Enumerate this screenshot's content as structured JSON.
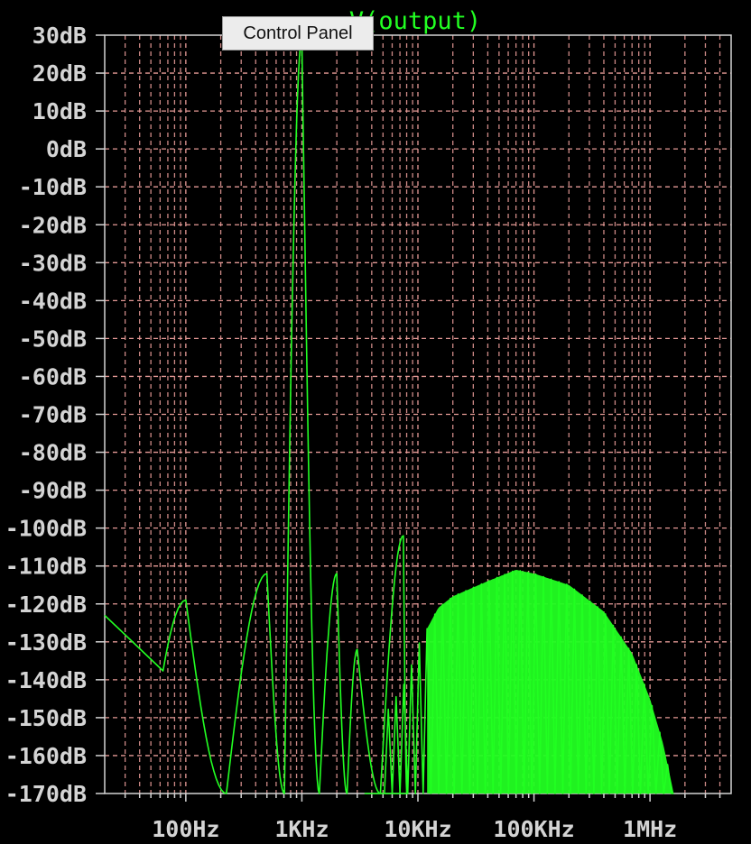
{
  "tooltip": {
    "label": "Control Panel"
  },
  "colors": {
    "background": "#000000",
    "trace": "#22ff22",
    "grid": "#e59a96",
    "axis": "#d4d4d4",
    "tick_text": "#d4d4d4"
  },
  "chart_data": {
    "type": "line",
    "title": "V(output)",
    "xscale": "log",
    "xlim": [
      20,
      5000000
    ],
    "ylim": [
      -170,
      30
    ],
    "grid": true,
    "x_ticks": [
      {
        "value": 100,
        "label": "100Hz"
      },
      {
        "value": 1000,
        "label": "1KHz"
      },
      {
        "value": 10000,
        "label": "10KHz"
      },
      {
        "value": 100000,
        "label": "100KHz"
      },
      {
        "value": 1000000,
        "label": "1MHz"
      }
    ],
    "y_ticks": [
      {
        "value": 30,
        "label": "30dB"
      },
      {
        "value": 20,
        "label": "20dB"
      },
      {
        "value": 10,
        "label": "10dB"
      },
      {
        "value": 0,
        "label": "0dB"
      },
      {
        "value": -10,
        "label": "-10dB"
      },
      {
        "value": -20,
        "label": "-20dB"
      },
      {
        "value": -30,
        "label": "-30dB"
      },
      {
        "value": -40,
        "label": "-40dB"
      },
      {
        "value": -50,
        "label": "-50dB"
      },
      {
        "value": -60,
        "label": "-60dB"
      },
      {
        "value": -70,
        "label": "-70dB"
      },
      {
        "value": -80,
        "label": "-80dB"
      },
      {
        "value": -90,
        "label": "-90dB"
      },
      {
        "value": -100,
        "label": "-100dB"
      },
      {
        "value": -110,
        "label": "-110dB"
      },
      {
        "value": -120,
        "label": "-120dB"
      },
      {
        "value": -130,
        "label": "-130dB"
      },
      {
        "value": -140,
        "label": "-140dB"
      },
      {
        "value": -150,
        "label": "-150dB"
      },
      {
        "value": -160,
        "label": "-160dB"
      },
      {
        "value": -170,
        "label": "-170dB"
      }
    ],
    "series": [
      {
        "name": "V(output)",
        "lobes": [
          {
            "f": 100,
            "peak": -119
          },
          {
            "f": 500,
            "peak": -112
          },
          {
            "f": 1000,
            "peak": 29
          },
          {
            "f": 2000,
            "peak": -112
          },
          {
            "f": 3000,
            "peak": -132
          },
          {
            "f": 7500,
            "peak": -102
          }
        ],
        "envelope": [
          {
            "f": 5000,
            "db": -150
          },
          {
            "f": 8000,
            "db": -140
          },
          {
            "f": 10000,
            "db": -131
          },
          {
            "f": 15000,
            "db": -121
          },
          {
            "f": 20000,
            "db": -118
          },
          {
            "f": 40000,
            "db": -114
          },
          {
            "f": 70000,
            "db": -111
          },
          {
            "f": 100000,
            "db": -112
          },
          {
            "f": 200000,
            "db": -115
          },
          {
            "f": 400000,
            "db": -122
          },
          {
            "f": 700000,
            "db": -133
          },
          {
            "f": 1000000,
            "db": -145
          },
          {
            "f": 1300000,
            "db": -157
          },
          {
            "f": 1600000,
            "db": -170
          }
        ]
      }
    ]
  }
}
